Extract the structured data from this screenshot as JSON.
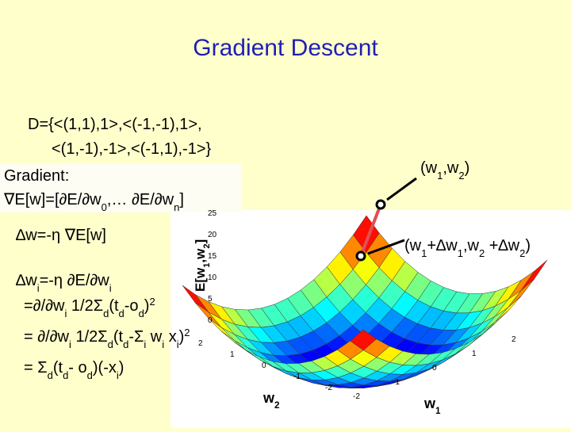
{
  "header": {
    "title": "Gradient Descent"
  },
  "body": {
    "lines": [
      [
        {
          "text": "D={<(1,1),1>,<(-1,-1),1>,"
        }
      ],
      [
        {
          "text": "<(1,-1),-1>,<(-1,1),-1>}"
        }
      ],
      [
        {
          "text": "Gradient:"
        }
      ],
      [
        {
          "text": "∇E[w]=[∂E/∂w"
        },
        {
          "text": "0",
          "script": "sub"
        },
        {
          "text": ",… ∂E/∂w"
        },
        {
          "text": "n",
          "script": "sub"
        },
        {
          "text": "]"
        }
      ],
      [
        {
          "text": "∆w=-η  ∇E[w]"
        }
      ],
      [
        {
          "text": "∆w"
        },
        {
          "text": "i",
          "script": "sub"
        },
        {
          "text": "=-η  ∂E/∂w"
        },
        {
          "text": "i",
          "script": "sub"
        }
      ],
      [
        {
          "text": "=∂/∂w"
        },
        {
          "text": "i",
          "script": "sub"
        },
        {
          "text": " 1/2Σ"
        },
        {
          "text": "d",
          "script": "sub"
        },
        {
          "text": "(t"
        },
        {
          "text": "d",
          "script": "sub"
        },
        {
          "text": "-o"
        },
        {
          "text": "d",
          "script": "sub"
        },
        {
          "text": ")"
        },
        {
          "text": "2",
          "script": "sup"
        }
      ],
      [
        {
          "text": "= ∂/∂w"
        },
        {
          "text": "i",
          "script": "sub"
        },
        {
          "text": " 1/2Σ"
        },
        {
          "text": "d",
          "script": "sub"
        },
        {
          "text": "(t"
        },
        {
          "text": "d",
          "script": "sub"
        },
        {
          "text": "-Σ"
        },
        {
          "text": "i",
          "script": "sub"
        },
        {
          "text": " w"
        },
        {
          "text": "i",
          "script": "sub"
        },
        {
          "text": " x"
        },
        {
          "text": "i",
          "script": "sub"
        },
        {
          "text": ")"
        },
        {
          "text": "2",
          "script": "sup"
        }
      ],
      [
        {
          "text": "= Σ"
        },
        {
          "text": "d",
          "script": "sub"
        },
        {
          "text": "(t"
        },
        {
          "text": "d",
          "script": "sub"
        },
        {
          "text": "- o"
        },
        {
          "text": "d",
          "script": "sub"
        },
        {
          "text": ")(-x"
        },
        {
          "text": "i",
          "script": "sub"
        },
        {
          "text": ")"
        }
      ]
    ]
  },
  "plot": {
    "z_label": [
      {
        "text": "E[w"
      },
      {
        "text": "1",
        "script": "sub"
      },
      {
        "text": ",w"
      },
      {
        "text": "2",
        "script": "sub"
      },
      {
        "text": "]"
      }
    ],
    "x_label": [
      {
        "text": "w"
      },
      {
        "text": "1",
        "script": "sub"
      }
    ],
    "y_label": [
      {
        "text": "w"
      },
      {
        "text": "2",
        "script": "sub"
      }
    ],
    "zticks": [
      "25",
      "20",
      "15",
      "10",
      "5",
      "0"
    ],
    "wticks": [
      "-2",
      "-1",
      "0",
      "1",
      "2"
    ],
    "annotations": [
      [
        {
          "text": "(w"
        },
        {
          "text": "1",
          "script": "sub"
        },
        {
          "text": ",w"
        },
        {
          "text": "2",
          "script": "sub"
        },
        {
          "text": ")"
        }
      ],
      [
        {
          "text": "(w"
        },
        {
          "text": "1",
          "script": "sub"
        },
        {
          "text": "+∆w"
        },
        {
          "text": "1",
          "script": "sub"
        },
        {
          "text": ",w"
        },
        {
          "text": "2",
          "script": "sub"
        },
        {
          "text": " +∆w"
        },
        {
          "text": "2",
          "script": "sub"
        },
        {
          "text": ")"
        }
      ]
    ]
  }
}
